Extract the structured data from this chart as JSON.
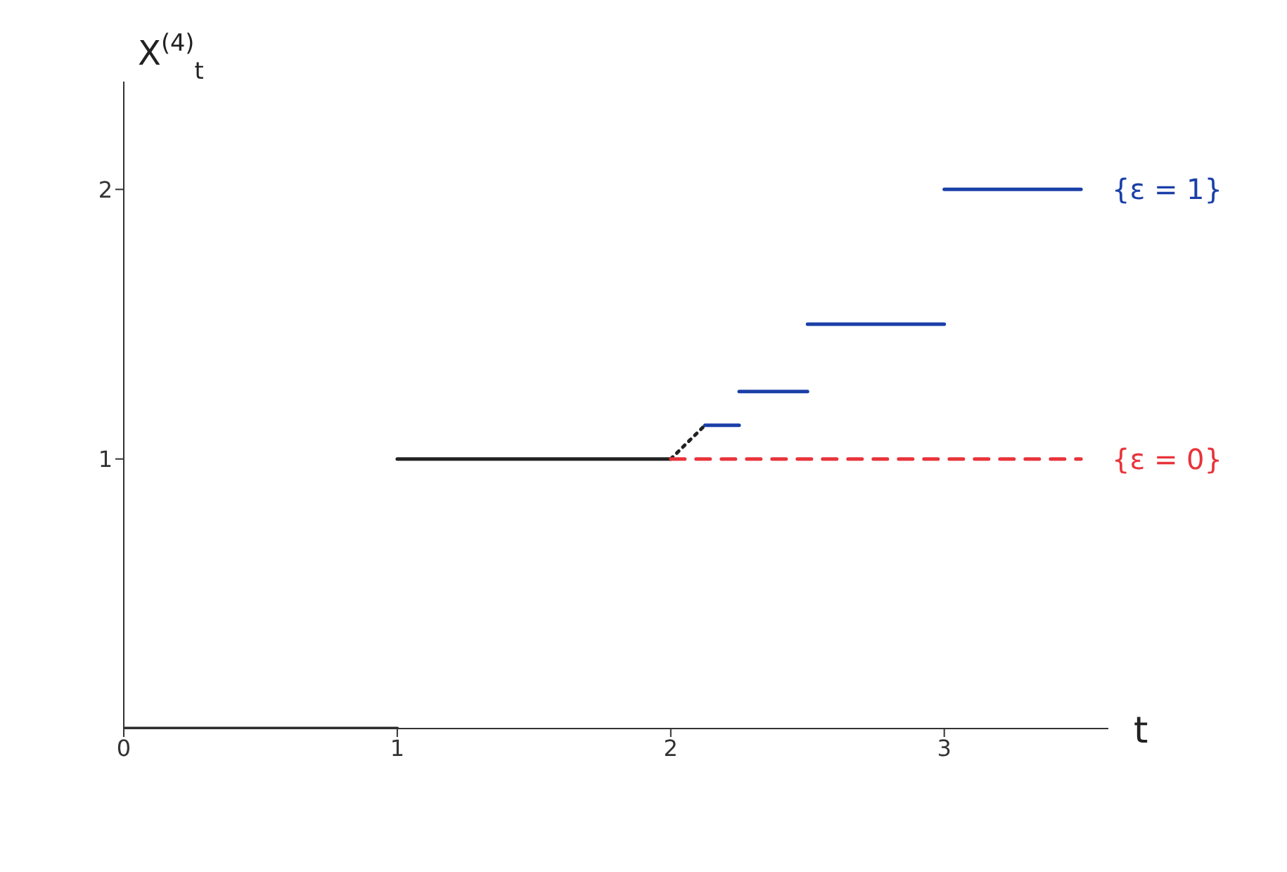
{
  "chart_data": {
    "type": "line",
    "xlabel": "t",
    "ylabel": "X$^{(4)}$$_{t}$",
    "xlim": [
      0,
      3.6
    ],
    "ylim": [
      0,
      2.4
    ],
    "xticks": [
      0,
      1,
      2,
      3
    ],
    "yticks": [
      1,
      2
    ],
    "grid": false,
    "legend": false,
    "marker": "none",
    "series": [
      {
        "color": "#222222",
        "line_style": "solid",
        "x": [
          0,
          1
        ],
        "values": [
          0,
          0
        ]
      },
      {
        "color": "#222222",
        "line_style": "solid",
        "x": [
          1,
          2
        ],
        "values": [
          1,
          1
        ]
      },
      {
        "color": "#222222",
        "line_style": "dotted",
        "x": [
          2,
          2.125
        ],
        "values": [
          1,
          1.125
        ]
      },
      {
        "name": "{ε = 0}",
        "color": "#e8333a",
        "line_style": "dashed",
        "x": [
          2,
          3.5
        ],
        "values": [
          1,
          1
        ]
      },
      {
        "color": "#1a3fa8",
        "line_style": "solid",
        "x": [
          2.125,
          2.25
        ],
        "values": [
          1.125,
          1.125
        ]
      },
      {
        "color": "#1a3fa8",
        "line_style": "solid",
        "x": [
          2.25,
          2.5
        ],
        "values": [
          1.25,
          1.25
        ]
      },
      {
        "color": "#1a3fa8",
        "line_style": "solid",
        "x": [
          2.5,
          3
        ],
        "values": [
          1.5,
          1.5
        ]
      },
      {
        "name": "{ε = 1}",
        "color": "#1a3fa8",
        "line_style": "solid",
        "x": [
          3,
          3.5
        ],
        "values": [
          2,
          2
        ]
      }
    ]
  }
}
